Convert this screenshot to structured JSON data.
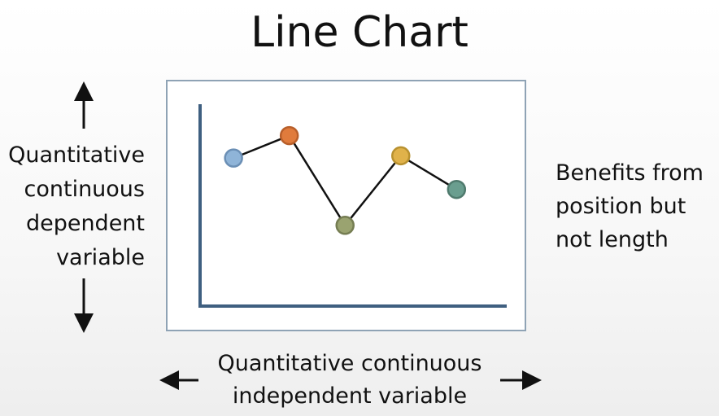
{
  "title": "Line Chart",
  "y_axis_label": {
    "lines": [
      "Quantitative",
      "continuous",
      "dependent",
      "variable"
    ]
  },
  "x_axis_label": {
    "lines": [
      "Quantitative continuous",
      "independent variable"
    ]
  },
  "note": {
    "lines": [
      "Benefits from",
      "position but",
      "not length"
    ]
  },
  "colors": {
    "axis": "#3f5f80",
    "frame_border": "#8fa3b5",
    "line": "#111111",
    "arrow": "#111111"
  },
  "chart_data": {
    "type": "line",
    "x": [
      1,
      2,
      3,
      4,
      5
    ],
    "y": [
      5.6,
      6.6,
      2.6,
      5.7,
      4.2
    ],
    "point_colors": [
      "#8fb4d8",
      "#e07b3c",
      "#9aa370",
      "#e0b24a",
      "#6a9e8f"
    ],
    "point_stroke_colors": [
      "#6b8fb5",
      "#b85f2a",
      "#757d52",
      "#b8912f",
      "#4f7a6d"
    ],
    "xlim": [
      0.4,
      5.9
    ],
    "ylim": [
      -1,
      8
    ],
    "grid": false,
    "legend": "none"
  }
}
